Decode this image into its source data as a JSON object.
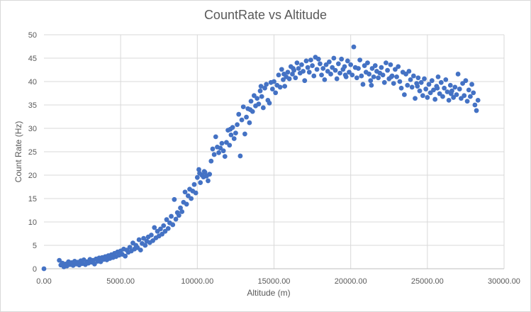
{
  "chart_data": {
    "type": "scatter",
    "title": "CountRate vs Altitude",
    "xlabel": "Altitude (m)",
    "ylabel": "Count Rate (Hz)",
    "xlim": [
      0,
      30000
    ],
    "ylim": [
      0,
      50
    ],
    "x_ticks": [
      "0.00",
      "5000.00",
      "10000.00",
      "15000.00",
      "20000.00",
      "25000.00",
      "30000.00"
    ],
    "y_ticks": [
      "0",
      "5",
      "10",
      "15",
      "20",
      "25",
      "30",
      "35",
      "40",
      "45",
      "50"
    ],
    "grid": "major",
    "legend": "none",
    "marker_color": "#4472c4",
    "points": [
      [
        0,
        0
      ],
      [
        1000,
        1.8
      ],
      [
        1100,
        0.8
      ],
      [
        1200,
        1.2
      ],
      [
        1300,
        0.4
      ],
      [
        1400,
        1.0
      ],
      [
        1500,
        0.6
      ],
      [
        1600,
        1.5
      ],
      [
        1700,
        0.9
      ],
      [
        1800,
        1.3
      ],
      [
        1900,
        0.7
      ],
      [
        2000,
        1.6
      ],
      [
        2100,
        1.0
      ],
      [
        2200,
        1.4
      ],
      [
        2300,
        0.8
      ],
      [
        2400,
        1.7
      ],
      [
        2500,
        1.1
      ],
      [
        2600,
        1.9
      ],
      [
        2700,
        0.9
      ],
      [
        2800,
        1.5
      ],
      [
        2900,
        1.2
      ],
      [
        3000,
        2.0
      ],
      [
        3100,
        1.4
      ],
      [
        3200,
        1.8
      ],
      [
        3300,
        1.0
      ],
      [
        3400,
        2.1
      ],
      [
        3500,
        1.6
      ],
      [
        3600,
        2.3
      ],
      [
        3700,
        1.5
      ],
      [
        3800,
        2.4
      ],
      [
        3900,
        2.0
      ],
      [
        4000,
        2.6
      ],
      [
        4100,
        1.9
      ],
      [
        4200,
        2.8
      ],
      [
        4300,
        2.2
      ],
      [
        4400,
        3.0
      ],
      [
        4500,
        2.4
      ],
      [
        4600,
        3.3
      ],
      [
        4700,
        2.6
      ],
      [
        4800,
        3.6
      ],
      [
        4900,
        2.9
      ],
      [
        5000,
        3.8
      ],
      [
        5100,
        3.1
      ],
      [
        5200,
        4.2
      ],
      [
        5300,
        2.7
      ],
      [
        5400,
        4.0
      ],
      [
        5500,
        3.5
      ],
      [
        5600,
        4.6
      ],
      [
        5700,
        3.8
      ],
      [
        5800,
        5.5
      ],
      [
        5900,
        4.2
      ],
      [
        6000,
        5.0
      ],
      [
        6100,
        4.5
      ],
      [
        6200,
        6.2
      ],
      [
        6300,
        4.0
      ],
      [
        6400,
        5.4
      ],
      [
        6500,
        6.5
      ],
      [
        6600,
        5.0
      ],
      [
        6700,
        5.9
      ],
      [
        6800,
        6.8
      ],
      [
        6900,
        5.6
      ],
      [
        7000,
        7.2
      ],
      [
        7100,
        6.0
      ],
      [
        7200,
        8.8
      ],
      [
        7300,
        6.6
      ],
      [
        7400,
        8.0
      ],
      [
        7500,
        7.0
      ],
      [
        7600,
        8.5
      ],
      [
        7700,
        7.4
      ],
      [
        7800,
        9.2
      ],
      [
        7900,
        8.0
      ],
      [
        8000,
        10.5
      ],
      [
        8100,
        8.6
      ],
      [
        8200,
        9.8
      ],
      [
        8300,
        11.2
      ],
      [
        8400,
        9.4
      ],
      [
        8500,
        14.8
      ],
      [
        8600,
        10.6
      ],
      [
        8700,
        12.0
      ],
      [
        8800,
        11.4
      ],
      [
        8900,
        13.0
      ],
      [
        9000,
        12.2
      ],
      [
        9100,
        14.2
      ],
      [
        9200,
        16.4
      ],
      [
        9300,
        13.8
      ],
      [
        9400,
        15.6
      ],
      [
        9500,
        17.0
      ],
      [
        9600,
        15.0
      ],
      [
        9700,
        16.6
      ],
      [
        9800,
        18.0
      ],
      [
        9900,
        16.2
      ],
      [
        10000,
        19.5
      ],
      [
        10100,
        21.2
      ],
      [
        10200,
        18.4
      ],
      [
        10300,
        20.0
      ],
      [
        10400,
        19.6
      ],
      [
        10500,
        20.6
      ],
      [
        10600,
        19.8
      ],
      [
        10700,
        18.8
      ],
      [
        10800,
        20.2
      ],
      [
        10900,
        23.0
      ],
      [
        11000,
        25.6
      ],
      [
        11100,
        24.4
      ],
      [
        11200,
        28.2
      ],
      [
        11300,
        26.0
      ],
      [
        11400,
        24.8
      ],
      [
        11500,
        25.8
      ],
      [
        11600,
        26.8
      ],
      [
        11700,
        25.2
      ],
      [
        11800,
        24.0
      ],
      [
        11900,
        27.0
      ],
      [
        12000,
        29.6
      ],
      [
        12100,
        26.4
      ],
      [
        12200,
        28.6
      ],
      [
        12300,
        30.2
      ],
      [
        12400,
        27.8
      ],
      [
        12500,
        29.0
      ],
      [
        12600,
        30.8
      ],
      [
        12700,
        33.0
      ],
      [
        12800,
        24.1
      ],
      [
        12900,
        31.8
      ],
      [
        13000,
        34.6
      ],
      [
        13100,
        28.8
      ],
      [
        13200,
        32.4
      ],
      [
        13300,
        34.2
      ],
      [
        13400,
        31.2
      ],
      [
        13500,
        35.8
      ],
      [
        13600,
        33.6
      ],
      [
        13700,
        37.0
      ],
      [
        13800,
        34.8
      ],
      [
        13900,
        36.4
      ],
      [
        14000,
        35.2
      ],
      [
        14100,
        38.0
      ],
      [
        14200,
        36.8
      ],
      [
        14300,
        34.4
      ],
      [
        14400,
        38.6
      ],
      [
        14500,
        39.4
      ],
      [
        14600,
        36.0
      ],
      [
        14700,
        35.4
      ],
      [
        14800,
        39.8
      ],
      [
        14900,
        38.4
      ],
      [
        15000,
        40.0
      ],
      [
        15100,
        37.6
      ],
      [
        15200,
        39.2
      ],
      [
        15300,
        41.4
      ],
      [
        15400,
        38.8
      ],
      [
        15500,
        42.6
      ],
      [
        15600,
        40.4
      ],
      [
        15700,
        39.0
      ],
      [
        15800,
        41.0
      ],
      [
        15900,
        42.0
      ],
      [
        16000,
        40.6
      ],
      [
        16100,
        43.2
      ],
      [
        16200,
        41.6
      ],
      [
        16300,
        42.4
      ],
      [
        16400,
        40.8
      ],
      [
        16500,
        44.0
      ],
      [
        16600,
        42.8
      ],
      [
        16700,
        41.8
      ],
      [
        16800,
        43.6
      ],
      [
        16900,
        42.2
      ],
      [
        17000,
        40.2
      ],
      [
        17100,
        44.4
      ],
      [
        17200,
        43.0
      ],
      [
        17300,
        42.0
      ],
      [
        17400,
        44.6
      ],
      [
        17500,
        43.4
      ],
      [
        17600,
        41.2
      ],
      [
        17700,
        45.2
      ],
      [
        17800,
        42.6
      ],
      [
        17900,
        44.8
      ],
      [
        18000,
        43.8
      ],
      [
        18100,
        41.4
      ],
      [
        18200,
        42.8
      ],
      [
        18300,
        40.4
      ],
      [
        18400,
        43.6
      ],
      [
        18500,
        42.2
      ],
      [
        18600,
        44.2
      ],
      [
        18700,
        41.6
      ],
      [
        18800,
        43.0
      ],
      [
        18900,
        45.0
      ],
      [
        19000,
        42.4
      ],
      [
        19100,
        40.6
      ],
      [
        19200,
        43.8
      ],
      [
        19300,
        41.8
      ],
      [
        19400,
        44.8
      ],
      [
        19500,
        42.6
      ],
      [
        19600,
        43.2
      ],
      [
        19700,
        41.0
      ],
      [
        19800,
        44.4
      ],
      [
        19900,
        42.0
      ],
      [
        20000,
        43.6
      ],
      [
        20100,
        41.4
      ],
      [
        20200,
        47.4
      ],
      [
        20300,
        43.0
      ],
      [
        20400,
        40.8
      ],
      [
        20500,
        42.8
      ],
      [
        20600,
        44.6
      ],
      [
        20700,
        41.2
      ],
      [
        20800,
        39.4
      ],
      [
        20900,
        43.4
      ],
      [
        21000,
        42.0
      ],
      [
        21100,
        44.0
      ],
      [
        21200,
        41.6
      ],
      [
        21300,
        40.2
      ],
      [
        21400,
        42.8
      ],
      [
        21500,
        41.0
      ],
      [
        21600,
        43.4
      ],
      [
        21700,
        42.2
      ],
      [
        21800,
        40.8
      ],
      [
        21900,
        41.8
      ],
      [
        22000,
        43.0
      ],
      [
        22100,
        41.4
      ],
      [
        22200,
        39.8
      ],
      [
        22300,
        44.0
      ],
      [
        22400,
        42.4
      ],
      [
        22500,
        40.6
      ],
      [
        22600,
        43.6
      ],
      [
        22700,
        41.2
      ],
      [
        22800,
        39.6
      ],
      [
        22900,
        42.6
      ],
      [
        23000,
        41.0
      ],
      [
        23100,
        43.2
      ],
      [
        23200,
        40.0
      ],
      [
        23300,
        38.6
      ],
      [
        23400,
        42.0
      ],
      [
        23500,
        37.2
      ],
      [
        23600,
        41.6
      ],
      [
        23700,
        39.2
      ],
      [
        23800,
        42.2
      ],
      [
        23900,
        40.4
      ],
      [
        24000,
        38.8
      ],
      [
        24100,
        41.2
      ],
      [
        24200,
        36.4
      ],
      [
        24300,
        39.6
      ],
      [
        24400,
        40.8
      ],
      [
        24500,
        38.0
      ],
      [
        24600,
        39.8
      ],
      [
        24700,
        37.0
      ],
      [
        24800,
        40.6
      ],
      [
        24900,
        38.4
      ],
      [
        25000,
        36.6
      ],
      [
        25100,
        39.4
      ],
      [
        25200,
        37.6
      ],
      [
        25300,
        40.2
      ],
      [
        25400,
        38.2
      ],
      [
        25500,
        36.2
      ],
      [
        25600,
        39.0
      ],
      [
        25700,
        41.0
      ],
      [
        25800,
        37.4
      ],
      [
        25900,
        39.8
      ],
      [
        26000,
        36.8
      ],
      [
        26100,
        38.6
      ],
      [
        26200,
        40.4
      ],
      [
        26300,
        37.8
      ],
      [
        26400,
        36.0
      ],
      [
        26500,
        39.2
      ],
      [
        26600,
        38.0
      ],
      [
        26700,
        36.6
      ],
      [
        26800,
        38.8
      ],
      [
        26900,
        37.2
      ],
      [
        27000,
        41.6
      ],
      [
        27100,
        38.4
      ],
      [
        27200,
        36.4
      ],
      [
        27300,
        39.6
      ],
      [
        27400,
        37.0
      ],
      [
        27500,
        40.2
      ],
      [
        27600,
        35.8
      ],
      [
        27700,
        38.2
      ],
      [
        27800,
        36.8
      ],
      [
        27900,
        39.4
      ],
      [
        28000,
        37.6
      ],
      [
        28100,
        35.0
      ],
      [
        28200,
        33.8
      ],
      [
        28300,
        36.0
      ],
      [
        10150,
        20.4
      ],
      [
        10450,
        20.8
      ],
      [
        12150,
        29.8
      ],
      [
        13450,
        34.0
      ],
      [
        14150,
        39.0
      ],
      [
        15650,
        41.6
      ],
      [
        16250,
        42.8
      ],
      [
        19650,
        41.4
      ],
      [
        21350,
        39.2
      ],
      [
        22650,
        41.0
      ],
      [
        24350,
        39.0
      ],
      [
        25650,
        38.6
      ],
      [
        26550,
        37.4
      ]
    ]
  }
}
